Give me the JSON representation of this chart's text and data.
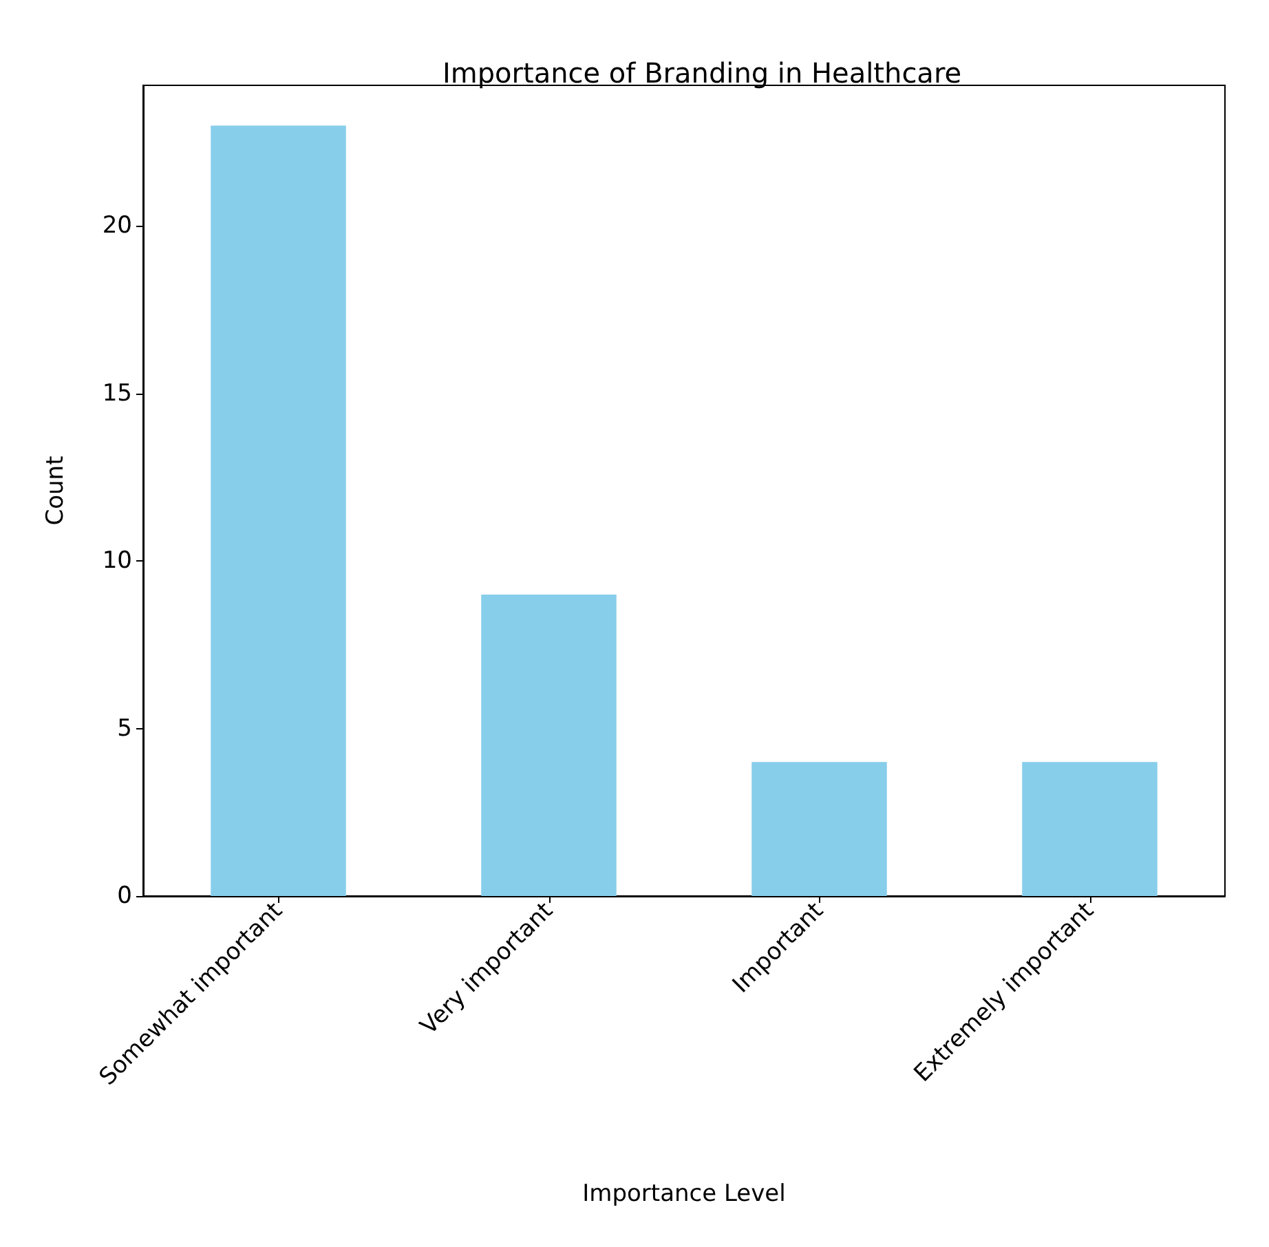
{
  "chart_data": {
    "type": "bar",
    "title": "Importance of Branding in Healthcare",
    "xlabel": "Importance Level",
    "ylabel": "Count",
    "categories": [
      "Somewhat important",
      "Very important",
      "Important",
      "Extremely important"
    ],
    "values": [
      23,
      9,
      4,
      4
    ],
    "color": "#87ceeb",
    "ylim": [
      0,
      24.2
    ],
    "yticks": [
      0,
      5,
      10,
      15,
      20
    ],
    "grid": false
  }
}
